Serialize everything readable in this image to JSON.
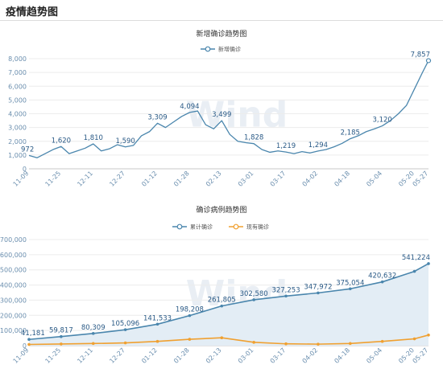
{
  "page": {
    "title": "疫情趋势图"
  },
  "chart_data": [
    {
      "type": "line",
      "title": "新增确诊趋势图",
      "legend": [
        "新增确诊"
      ],
      "legend_position": "top-center",
      "color": "#4a86ad",
      "ylim": [
        0,
        8000
      ],
      "y_ticks": [
        "0",
        "1,000",
        "2,000",
        "3,000",
        "4,000",
        "5,000",
        "6,000",
        "7,000",
        "8,000"
      ],
      "x_ticks": [
        "11-09",
        "11-25",
        "12-11",
        "12-27",
        "01-12",
        "01-28",
        "02-13",
        "03-01",
        "03-17",
        "04-02",
        "04-18",
        "05-04",
        "05-20",
        "05-27"
      ],
      "grid": "horizontal",
      "x_range": [
        "2020-11-09",
        "2021-05-27"
      ],
      "series": [
        {
          "x": [
            "2020-11-09",
            "2020-11-13",
            "2020-11-17",
            "2020-11-21",
            "2020-11-25",
            "2020-11-29",
            "2020-12-03",
            "2020-12-07",
            "2020-12-11",
            "2020-12-15",
            "2020-12-19",
            "2020-12-23",
            "2020-12-27",
            "2020-12-31",
            "2021-01-04",
            "2021-01-08",
            "2021-01-12",
            "2021-01-16",
            "2021-01-20",
            "2021-01-24",
            "2021-01-28",
            "2021-02-01",
            "2021-02-05",
            "2021-02-09",
            "2021-02-13",
            "2021-02-17",
            "2021-02-21",
            "2021-02-25",
            "2021-03-01",
            "2021-03-05",
            "2021-03-09",
            "2021-03-13",
            "2021-03-17",
            "2021-03-21",
            "2021-03-25",
            "2021-03-29",
            "2021-04-02",
            "2021-04-06",
            "2021-04-10",
            "2021-04-14",
            "2021-04-18",
            "2021-04-22",
            "2021-04-26",
            "2021-04-30",
            "2021-05-04",
            "2021-05-08",
            "2021-05-12",
            "2021-05-16",
            "2021-05-20",
            "2021-05-24",
            "2021-05-27"
          ],
          "values": [
            972,
            800,
            1100,
            1400,
            1620,
            1100,
            1300,
            1500,
            1810,
            1300,
            1450,
            1750,
            1590,
            1700,
            2400,
            2700,
            3309,
            3000,
            3400,
            3800,
            4094,
            4200,
            3200,
            2900,
            3499,
            2500,
            2000,
            1900,
            1828,
            1400,
            1200,
            1300,
            1219,
            1100,
            1250,
            1150,
            1294,
            1400,
            1600,
            1850,
            2185,
            2400,
            2700,
            2900,
            3120,
            3500,
            4000,
            4600,
            5800,
            7000,
            7857
          ]
        }
      ],
      "data_labels": [
        {
          "x": "2020-11-09",
          "y": 972,
          "text": "972"
        },
        {
          "x": "2020-11-25",
          "y": 1620,
          "text": "1,620"
        },
        {
          "x": "2020-12-11",
          "y": 1810,
          "text": "1,810"
        },
        {
          "x": "2020-12-27",
          "y": 1590,
          "text": "1,590"
        },
        {
          "x": "2021-01-12",
          "y": 3309,
          "text": "3,309"
        },
        {
          "x": "2021-01-28",
          "y": 4094,
          "text": "4,094"
        },
        {
          "x": "2021-02-13",
          "y": 3499,
          "text": "3,499"
        },
        {
          "x": "2021-03-01",
          "y": 1828,
          "text": "1,828"
        },
        {
          "x": "2021-03-17",
          "y": 1219,
          "text": "1,219"
        },
        {
          "x": "2021-04-02",
          "y": 1294,
          "text": "1,294"
        },
        {
          "x": "2021-04-18",
          "y": 2185,
          "text": "2,185"
        },
        {
          "x": "2021-05-04",
          "y": 3120,
          "text": "3,120"
        },
        {
          "x": "2021-05-27",
          "y": 7857,
          "text": "7,857"
        }
      ]
    },
    {
      "type": "area",
      "title": "确诊病例趋势图",
      "legend": [
        "累计确诊",
        "现有确诊"
      ],
      "legend_position": "top-center",
      "colors": [
        "#4a86ad",
        "#f0a030"
      ],
      "ylim": [
        0,
        700000
      ],
      "y_ticks": [
        "0",
        "100,000",
        "200,000",
        "300,000",
        "400,000",
        "500,000",
        "600,000",
        "700,000"
      ],
      "x_ticks": [
        "11-09",
        "11-25",
        "12-11",
        "12-27",
        "01-12",
        "01-28",
        "02-13",
        "03-01",
        "03-17",
        "04-02",
        "04-18",
        "05-04",
        "05-20",
        "05-27"
      ],
      "grid": "horizontal",
      "x_range": [
        "2020-11-09",
        "2021-05-27"
      ],
      "series": [
        {
          "name": "累计确诊",
          "x": [
            "2020-11-09",
            "2020-11-25",
            "2020-12-11",
            "2020-12-27",
            "2021-01-12",
            "2021-01-28",
            "2021-02-13",
            "2021-03-01",
            "2021-03-17",
            "2021-04-02",
            "2021-04-18",
            "2021-05-04",
            "2021-05-20",
            "2021-05-27"
          ],
          "values": [
            41181,
            59817,
            80309,
            105096,
            141533,
            198208,
            261805,
            302580,
            327253,
            347972,
            375054,
            420632,
            490000,
            541224
          ]
        },
        {
          "name": "现有确诊",
          "x": [
            "2020-11-09",
            "2020-11-25",
            "2020-12-11",
            "2020-12-27",
            "2021-01-12",
            "2021-01-28",
            "2021-02-13",
            "2021-03-01",
            "2021-03-17",
            "2021-04-02",
            "2021-04-18",
            "2021-05-04",
            "2021-05-20",
            "2021-05-27"
          ],
          "values": [
            8000,
            11000,
            14000,
            18000,
            28000,
            42000,
            52000,
            22000,
            12000,
            10000,
            14000,
            28000,
            45000,
            70000
          ]
        }
      ],
      "data_labels": [
        {
          "x": "2020-11-09",
          "y": 41181,
          "text": "41,181"
        },
        {
          "x": "2020-11-25",
          "y": 59817,
          "text": "59,817"
        },
        {
          "x": "2020-12-11",
          "y": 80309,
          "text": "80,309"
        },
        {
          "x": "2020-12-27",
          "y": 105096,
          "text": "105,096"
        },
        {
          "x": "2021-01-12",
          "y": 141533,
          "text": "141,533"
        },
        {
          "x": "2021-01-28",
          "y": 198208,
          "text": "198,208"
        },
        {
          "x": "2021-02-13",
          "y": 261805,
          "text": "261,805"
        },
        {
          "x": "2021-03-01",
          "y": 302580,
          "text": "302,580"
        },
        {
          "x": "2021-03-17",
          "y": 327253,
          "text": "327,253"
        },
        {
          "x": "2021-04-02",
          "y": 347972,
          "text": "347,972"
        },
        {
          "x": "2021-04-18",
          "y": 375054,
          "text": "375,054"
        },
        {
          "x": "2021-05-04",
          "y": 420632,
          "text": "420,632"
        },
        {
          "x": "2021-05-27",
          "y": 541224,
          "text": "541,224"
        }
      ]
    }
  ],
  "watermark": "Wind"
}
